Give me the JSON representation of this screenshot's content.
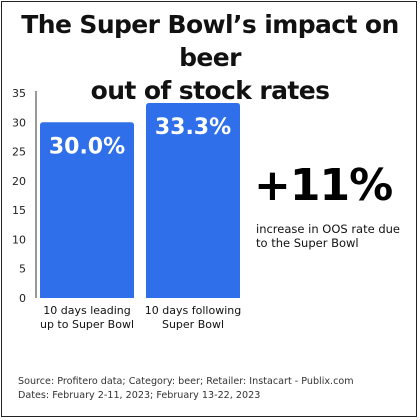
{
  "title": {
    "line1": "The Super Bowl’s impact on beer",
    "line2": "out of stock rates"
  },
  "chart_data": {
    "type": "bar",
    "categories": [
      [
        "10 days leading",
        "up to Super Bowl"
      ],
      [
        "10 days following",
        "Super Bowl"
      ]
    ],
    "values": [
      30.0,
      33.3
    ],
    "data_labels": [
      "30.0%",
      "33.3%"
    ],
    "yticks": [
      0,
      5,
      10,
      15,
      20,
      25,
      30,
      35
    ],
    "ylim": [
      0,
      35
    ],
    "grid": false,
    "bar_color": "#2F6FEA",
    "label_color": "#ffffff"
  },
  "callout": {
    "value": "+11%",
    "description_line1": "increase in OOS rate due",
    "description_line2": "to the Super Bowl"
  },
  "source": {
    "line1": "Source: Profitero data; Category: beer; Retailer: Instacart - Publix.com",
    "line2": "Dates: February 2-11, 2023; February 13-22, 2023"
  }
}
